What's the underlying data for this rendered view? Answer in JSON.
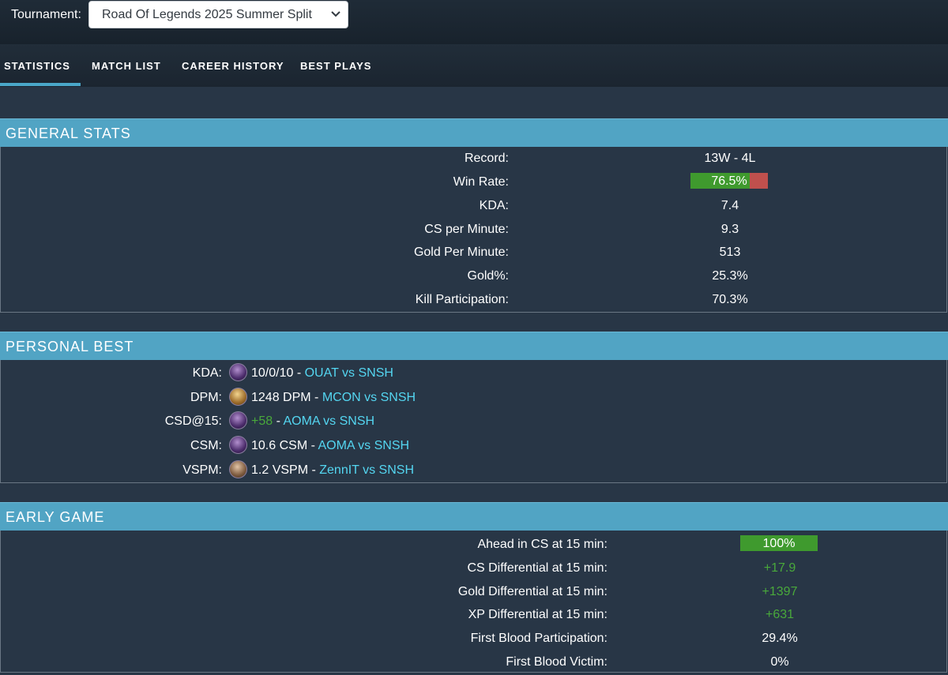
{
  "tournament": {
    "label": "Tournament:",
    "selected": "Road Of Legends 2025 Summer Split"
  },
  "tabs": [
    {
      "label": "STATISTICS",
      "active": true
    },
    {
      "label": "MATCH LIST",
      "active": false
    },
    {
      "label": "CAREER HISTORY",
      "active": false
    },
    {
      "label": "BEST PLAYS",
      "active": false
    }
  ],
  "general": {
    "title": "GENERAL STATS",
    "record": {
      "label": "Record:",
      "value": "13W - 4L"
    },
    "win_rate": {
      "label": "Win Rate:",
      "value": "76.5%",
      "fraction": 0.765
    },
    "kda": {
      "label": "KDA:",
      "value": "7.4"
    },
    "cspm": {
      "label": "CS per Minute:",
      "value": "9.3"
    },
    "gpm": {
      "label": "Gold Per Minute:",
      "value": "513"
    },
    "gold_pct": {
      "label": "Gold%:",
      "value": "25.3%"
    },
    "kp": {
      "label": "Kill Participation:",
      "value": "70.3%"
    }
  },
  "personal": {
    "title": "PERSONAL BEST",
    "rows": [
      {
        "label": "KDA:",
        "icon": "champion-portrait-icon",
        "value": "10/0/10",
        "value_green": false,
        "match": "OUAT vs SNSH"
      },
      {
        "label": "DPM:",
        "icon": "champion-portrait-icon",
        "value": "1248 DPM",
        "value_green": false,
        "match": "MCON vs SNSH"
      },
      {
        "label": "CSD@15:",
        "icon": "champion-portrait-icon",
        "value": "+58",
        "value_green": true,
        "match": "AOMA vs SNSH"
      },
      {
        "label": "CSM:",
        "icon": "champion-portrait-icon",
        "value": "10.6 CSM",
        "value_green": false,
        "match": "AOMA vs SNSH"
      },
      {
        "label": "VSPM:",
        "icon": "champion-portrait-icon",
        "value": "1.2 VSPM",
        "value_green": false,
        "match": "ZennIT vs SNSH"
      }
    ],
    "separator": " - "
  },
  "early": {
    "title": "EARLY GAME",
    "ahead_cs": {
      "label": "Ahead in CS at 15 min:",
      "value": "100%",
      "fraction": 1.0
    },
    "csd": {
      "label": "CS Differential at 15 min:",
      "value": "+17.9"
    },
    "gd": {
      "label": "Gold Differential at 15 min:",
      "value": "+1397"
    },
    "xpd": {
      "label": "XP Differential at 15 min:",
      "value": "+631"
    },
    "fbp": {
      "label": "First Blood Participation:",
      "value": "29.4%"
    },
    "fbv": {
      "label": "First Blood Victim:",
      "value": "0%"
    }
  },
  "colors": {
    "page_bg": "#283646",
    "section_header": "#51a4c4",
    "tab_underline": "#4aa7c9",
    "positive": "#49a93b",
    "bar_win": "#3f9a2e",
    "bar_loss": "#c0504d",
    "link": "#54d6f1"
  }
}
